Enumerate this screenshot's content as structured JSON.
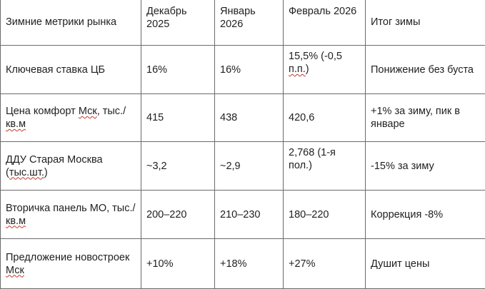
{
  "table": {
    "header": {
      "label": "Зимние метрики рынка",
      "dec": "Декабрь 2025",
      "jan": "Январь 2026",
      "feb": "Февраль 2026",
      "total": "Итог зимы"
    },
    "rows": [
      {
        "label": "Ключевая ставка ЦБ",
        "dec": "16%",
        "jan": "16%",
        "feb_main": "15,5% (-0,5 ",
        "feb_sp": "п.п.",
        "feb_end": ")",
        "total": "Понижение без буста"
      },
      {
        "label_main": "Цена комфорт ",
        "label_sp1": "Мск",
        "label_mid": ", тыс./",
        "label_sp2": "кв.м",
        "dec": "415",
        "jan": "438",
        "feb": "420,6",
        "total": "+1% за зиму, пик в январе"
      },
      {
        "label_main": "ДДУ Старая Москва (",
        "label_sp": "тыс.шт.",
        "label_end": ")",
        "dec": "~3,2",
        "jan": "~2,9",
        "feb": "2,768 (1-я пол.)",
        "total": "-15% за зиму"
      },
      {
        "label_main": "Вторичка панель МО, тыс./",
        "label_sp": "кв.м",
        "dec": "200–220",
        "jan": "210–230",
        "feb": "180–220",
        "total": "Коррекция -8%"
      },
      {
        "label_main": "Предложение новостроек ",
        "label_sp": "Мск",
        "dec": "+10%",
        "jan": "+18%",
        "feb": "+27%",
        "total": "Душит цены"
      }
    ]
  }
}
